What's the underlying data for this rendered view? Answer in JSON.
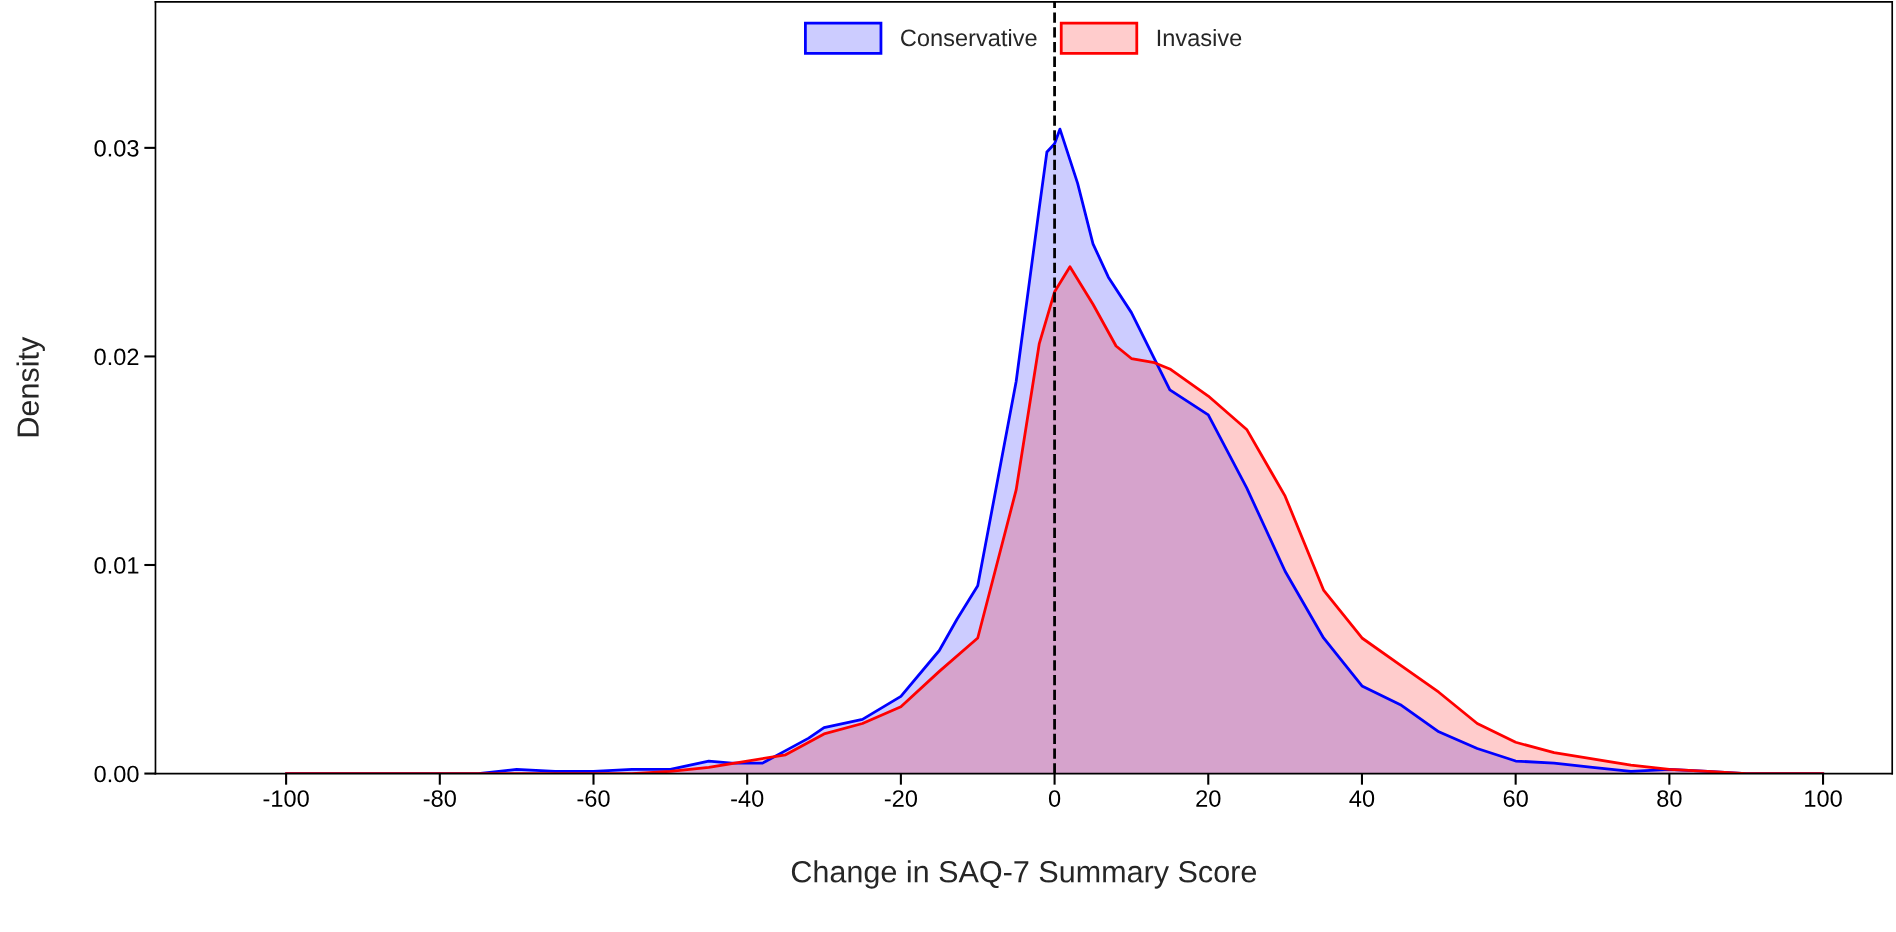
{
  "chart_data": {
    "type": "area",
    "xlabel": "Change in SAQ-7 Summary Score",
    "ylabel": "Density",
    "xlim": [
      -117,
      109
    ],
    "ylim": [
      0,
      0.037
    ],
    "xticks": [
      -100,
      -80,
      -60,
      -40,
      -20,
      0,
      20,
      40,
      60,
      80,
      100
    ],
    "yticks": [
      {
        "value": 0,
        "label": "0.00"
      },
      {
        "value": 0.01,
        "label": "0.01"
      },
      {
        "value": 0.02,
        "label": "0.02"
      },
      {
        "value": 0.03,
        "label": "0.03"
      }
    ],
    "grid": false,
    "legend": "top",
    "ref_lines": [
      {
        "axis": "x",
        "value": 0,
        "color": "#000000",
        "line_style": "dashed"
      }
    ],
    "series": [
      {
        "name": "Conservative",
        "color": "#0000ff",
        "x": [
          -100,
          -80,
          -75,
          -70,
          -65,
          -60,
          -55,
          -50,
          -45,
          -42,
          -40,
          -38,
          -35,
          -32,
          -30,
          -25,
          -20,
          -15,
          -12.7,
          -10,
          -5,
          -2,
          -1,
          0,
          0.7,
          3,
          5,
          7,
          10,
          15,
          20,
          25,
          30,
          35,
          40,
          45,
          50,
          55,
          60,
          65,
          70,
          75,
          80,
          85,
          90,
          100
        ],
        "values": [
          0,
          0,
          0,
          0.0002,
          0.0001,
          0.0001,
          0.0002,
          0.0002,
          0.0006,
          0.0005,
          0.0005,
          0.0005,
          0.0011,
          0.0017,
          0.0022,
          0.0026,
          0.0037,
          0.0059,
          0.0074,
          0.009,
          0.0188,
          0.0271,
          0.0298,
          0.0302,
          0.0309,
          0.0283,
          0.0254,
          0.0238,
          0.0221,
          0.0184,
          0.0172,
          0.0137,
          0.0097,
          0.0065,
          0.0042,
          0.0033,
          0.002,
          0.0012,
          0.0006,
          0.0005,
          0.0003,
          0.0001,
          0.0002,
          0.0001,
          0,
          0
        ]
      },
      {
        "name": "Invasive",
        "color": "#ff0000",
        "x": [
          -100,
          -60,
          -55,
          -50,
          -45,
          -40,
          -35,
          -30,
          -25,
          -20,
          -15,
          -10,
          -5,
          -2,
          0,
          2,
          5,
          8,
          10,
          13,
          15,
          20,
          25,
          30,
          35,
          40,
          45,
          50,
          55,
          60,
          65,
          70,
          75,
          80,
          85,
          90,
          100
        ],
        "values": [
          0,
          0,
          0,
          0.0001,
          0.0003,
          0.0006,
          0.0009,
          0.0019,
          0.0024,
          0.0032,
          0.0049,
          0.0065,
          0.0136,
          0.0206,
          0.0231,
          0.0243,
          0.0225,
          0.0205,
          0.0199,
          0.0197,
          0.0194,
          0.0181,
          0.0165,
          0.0133,
          0.0088,
          0.0065,
          0.0052,
          0.0039,
          0.0024,
          0.0015,
          0.001,
          0.0007,
          0.0004,
          0.0002,
          0.0001,
          0,
          0
        ]
      }
    ]
  }
}
